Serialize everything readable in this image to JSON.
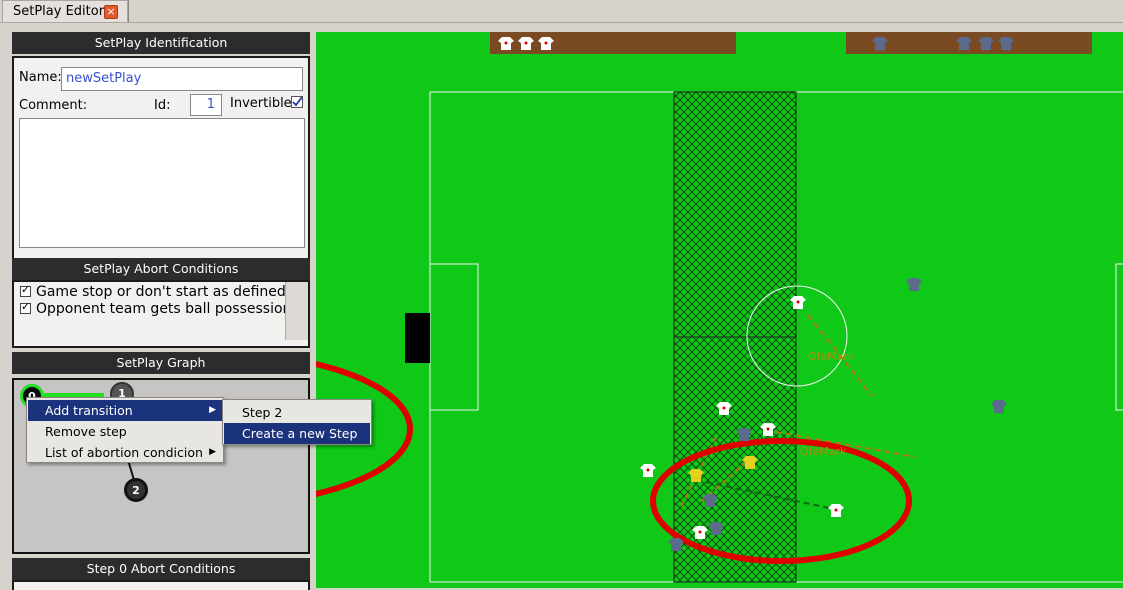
{
  "tab": {
    "title": "SetPlay Editor",
    "close_glyph": "×"
  },
  "identification": {
    "header": "SetPlay Identification",
    "name_label": "Name:",
    "name_value": "newSetPlay",
    "comment_label": "Comment:",
    "id_label": "Id:",
    "id_value": "1",
    "invertible_label": "Invertible",
    "invertible_checked": true
  },
  "abort_conditions": {
    "header": "SetPlay Abort Conditions",
    "items": [
      {
        "label": "Game stop or don't start as defined",
        "checked": true
      },
      {
        "label": "Opponent team gets ball possession",
        "checked": true
      }
    ]
  },
  "graph": {
    "header": "SetPlay Graph",
    "nodes": [
      "0",
      "1",
      "2"
    ]
  },
  "context_menu": {
    "items": [
      {
        "label": "Add transition",
        "has_submenu": true,
        "selected": true
      },
      {
        "label": "Remove step",
        "has_submenu": false,
        "selected": false
      },
      {
        "label": "List of abortion condicion",
        "has_submenu": true,
        "selected": false
      }
    ],
    "submenu": [
      {
        "label": "Step 2",
        "selected": false
      },
      {
        "label": "Create a  new Step",
        "selected": true
      }
    ]
  },
  "step0_abort": {
    "header": "Step 0 Abort Conditions"
  },
  "field": {
    "labels": [
      "OfeMark",
      "OfeMark"
    ],
    "colors": {
      "grass": "#10c818",
      "home_shirt": "#ffffff",
      "away_shirt": "#5c6a8c",
      "highlight": "#e00000"
    }
  }
}
